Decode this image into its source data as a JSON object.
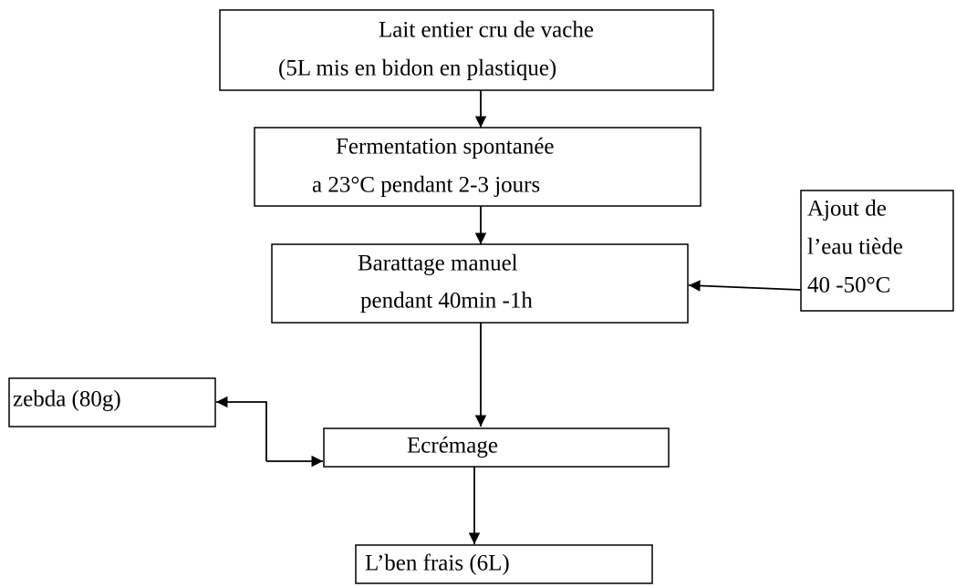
{
  "nodes": [
    {
      "lines": [
        "Lait entier cru de vache",
        "(5L mis en bidon en plastique)"
      ]
    },
    {
      "lines": [
        "Fermentation spontanée",
        "a 23°C pendant 2-3 jours"
      ]
    },
    {
      "lines": [
        "Barattage manuel",
        "pendant 40min -1h"
      ]
    },
    {
      "lines": [
        "Ajout de",
        "l’eau tiède",
        "40 -50°C"
      ]
    },
    {
      "lines": [
        "zebda (80g)"
      ]
    },
    {
      "lines": [
        "Ecrémage"
      ]
    },
    {
      "lines": [
        "L’ben frais (6L)"
      ]
    }
  ]
}
